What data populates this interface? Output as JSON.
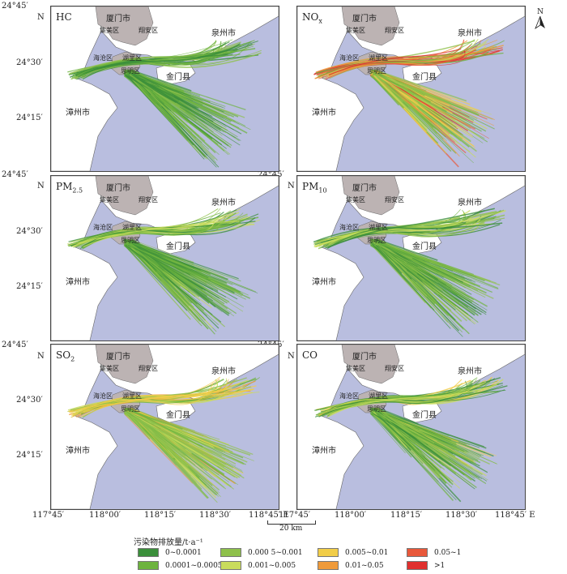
{
  "axes": {
    "y_left_top": [
      "24°45′",
      "N",
      "24°30′",
      "24°15′"
    ],
    "y_left_mid": [
      "24°45′",
      "N",
      "24°30′",
      "24°15′"
    ],
    "y_left_bot": [
      "24°45′",
      "N",
      "24°30′",
      "24°15′"
    ],
    "y_right_top": [
      "24°45′",
      "N"
    ],
    "y_right_mid": [
      "24°45′",
      "N"
    ],
    "x_bottom_left": [
      "117°45′",
      "118°00′",
      "118°15′",
      "118°30′",
      "118°45′ E"
    ],
    "x_bottom_right": [
      "117°45′",
      "118°00′",
      "118°15′",
      "118°30′",
      "118°45′ E"
    ]
  },
  "north_arrow": {
    "label": "N",
    "icon": "north-arrow-icon"
  },
  "places": {
    "xiamen": "厦门市",
    "jimei": "集美区",
    "xiangan": "翔安区",
    "quanzhou": "泉州市",
    "haicang": "海沧区",
    "huli": "湖里区",
    "siming": "思明区",
    "jinmen": "金门县",
    "zhangzhou": "漳州市"
  },
  "panels": [
    {
      "title_main": "HC",
      "title_sub": ""
    },
    {
      "title_main": "NO",
      "title_sub": "x"
    },
    {
      "title_main": "PM",
      "title_sub": "2.5"
    },
    {
      "title_main": "PM",
      "title_sub": "10"
    },
    {
      "title_main": "SO",
      "title_sub": "2"
    },
    {
      "title_main": "CO",
      "title_sub": ""
    }
  ],
  "scale": {
    "label": "20 km"
  },
  "legend": {
    "title": "污染物排放量/t·a⁻¹",
    "items": [
      {
        "label": "0~0.0001",
        "color": "#3b8f3b"
      },
      {
        "label": "0.0001~0.0005",
        "color": "#6db33f"
      },
      {
        "label": "0.000 5~0.001",
        "color": "#8ec04b"
      },
      {
        "label": "0.001~0.005",
        "color": "#c9dc5c"
      },
      {
        "label": "0.005~0.01",
        "color": "#f1cd48"
      },
      {
        "label": "0.01~0.05",
        "color": "#ef9a3a"
      },
      {
        "label": "0.05~1",
        "color": "#e8583a"
      },
      {
        "label": ">1",
        "color": "#e0302e"
      }
    ]
  },
  "colors": {
    "sea": "#b9bedf",
    "land": "#ffffff",
    "urban": "#bcb3b3",
    "coast": "#666666"
  }
}
